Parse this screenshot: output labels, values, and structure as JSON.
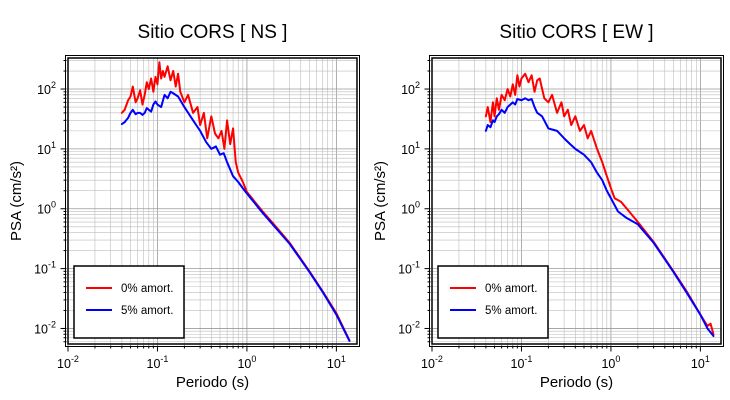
{
  "chart_data": [
    {
      "type": "line",
      "title": "Sitio CORS [ NS ]",
      "xlabel": "Periodo (s)",
      "ylabel": "PSA (cm/s²)",
      "xscale": "log",
      "yscale": "log",
      "xlim": [
        0.01,
        17
      ],
      "ylim": [
        0.0055,
        330
      ],
      "x_ticks": [
        0.01,
        0.1,
        1,
        10
      ],
      "x_tick_labels": [
        {
          "base": "10",
          "exp": "-2"
        },
        {
          "base": "10",
          "exp": "-1"
        },
        {
          "base": "10",
          "exp": "0"
        },
        {
          "base": "10",
          "exp": "1"
        }
      ],
      "y_ticks": [
        0.01,
        0.1,
        1,
        10,
        100
      ],
      "y_tick_labels": [
        {
          "base": "10",
          "exp": "-2"
        },
        {
          "base": "10",
          "exp": "-1"
        },
        {
          "base": "10",
          "exp": "0"
        },
        {
          "base": "10",
          "exp": "1"
        },
        {
          "base": "10",
          "exp": "2"
        }
      ],
      "grid": true,
      "legend_position": "bottom-left",
      "series": [
        {
          "name": "0% amort.",
          "color": "#ff0000",
          "x": [
            0.04,
            0.043,
            0.047,
            0.05,
            0.053,
            0.057,
            0.06,
            0.064,
            0.068,
            0.072,
            0.076,
            0.08,
            0.085,
            0.09,
            0.095,
            0.1,
            0.105,
            0.11,
            0.115,
            0.12,
            0.13,
            0.14,
            0.15,
            0.16,
            0.17,
            0.18,
            0.2,
            0.22,
            0.25,
            0.28,
            0.3,
            0.33,
            0.36,
            0.4,
            0.44,
            0.48,
            0.52,
            0.56,
            0.6,
            0.65,
            0.7,
            0.75,
            0.8,
            0.9,
            1.0,
            1.5,
            2,
            3,
            5,
            7,
            10,
            14
          ],
          "y": [
            40,
            45,
            65,
            75,
            110,
            60,
            70,
            95,
            55,
            80,
            130,
            100,
            150,
            90,
            160,
            120,
            280,
            150,
            200,
            160,
            240,
            140,
            200,
            110,
            180,
            90,
            60,
            80,
            40,
            50,
            25,
            40,
            15,
            35,
            18,
            15,
            20,
            10,
            30,
            12,
            22,
            6,
            4,
            2.8,
            1.9,
            0.9,
            0.55,
            0.27,
            0.09,
            0.042,
            0.018,
            0.0063
          ]
        },
        {
          "name": "5% amort.",
          "color": "#0000ff",
          "x": [
            0.04,
            0.043,
            0.047,
            0.05,
            0.053,
            0.057,
            0.06,
            0.064,
            0.068,
            0.072,
            0.076,
            0.08,
            0.085,
            0.09,
            0.095,
            0.1,
            0.11,
            0.12,
            0.13,
            0.14,
            0.15,
            0.17,
            0.2,
            0.25,
            0.3,
            0.35,
            0.4,
            0.45,
            0.5,
            0.55,
            0.6,
            0.7,
            0.8,
            0.9,
            1.0,
            1.5,
            2,
            3,
            5,
            7,
            10,
            14
          ],
          "y": [
            26,
            28,
            33,
            40,
            45,
            38,
            40,
            40,
            37,
            40,
            48,
            45,
            42,
            55,
            62,
            55,
            50,
            80,
            70,
            90,
            85,
            75,
            50,
            30,
            20,
            13,
            10,
            11,
            8,
            8.5,
            6,
            3.5,
            2.8,
            2.2,
            1.8,
            0.85,
            0.52,
            0.26,
            0.088,
            0.041,
            0.017,
            0.0062
          ]
        }
      ]
    },
    {
      "type": "line",
      "title": "Sitio CORS [ EW ]",
      "xlabel": "Periodo (s)",
      "ylabel": "PSA (cm/s²)",
      "xscale": "log",
      "yscale": "log",
      "xlim": [
        0.01,
        17
      ],
      "ylim": [
        0.0055,
        330
      ],
      "x_ticks": [
        0.01,
        0.1,
        1,
        10
      ],
      "x_tick_labels": [
        {
          "base": "10",
          "exp": "-2"
        },
        {
          "base": "10",
          "exp": "-1"
        },
        {
          "base": "10",
          "exp": "0"
        },
        {
          "base": "10",
          "exp": "1"
        }
      ],
      "y_ticks": [
        0.01,
        0.1,
        1,
        10,
        100
      ],
      "y_tick_labels": [
        {
          "base": "10",
          "exp": "-2"
        },
        {
          "base": "10",
          "exp": "-1"
        },
        {
          "base": "10",
          "exp": "0"
        },
        {
          "base": "10",
          "exp": "1"
        },
        {
          "base": "10",
          "exp": "2"
        }
      ],
      "grid": true,
      "legend_position": "bottom-left",
      "series": [
        {
          "name": "0% amort.",
          "color": "#ff0000",
          "x": [
            0.04,
            0.042,
            0.045,
            0.048,
            0.05,
            0.053,
            0.056,
            0.06,
            0.065,
            0.07,
            0.075,
            0.08,
            0.085,
            0.09,
            0.095,
            0.1,
            0.11,
            0.12,
            0.13,
            0.14,
            0.15,
            0.16,
            0.18,
            0.2,
            0.22,
            0.25,
            0.28,
            0.3,
            0.33,
            0.36,
            0.4,
            0.45,
            0.5,
            0.55,
            0.6,
            0.7,
            0.8,
            0.9,
            1.0,
            1.1,
            1.3,
            1.6,
            2,
            3,
            5,
            7,
            10,
            12,
            13,
            14
          ],
          "y": [
            35,
            50,
            28,
            60,
            35,
            70,
            45,
            80,
            65,
            100,
            75,
            120,
            80,
            170,
            110,
            150,
            180,
            130,
            170,
            90,
            140,
            150,
            70,
            60,
            80,
            40,
            60,
            35,
            45,
            25,
            35,
            20,
            25,
            15,
            20,
            10,
            6,
            3.5,
            2.2,
            1.5,
            1.3,
            0.9,
            0.6,
            0.28,
            0.09,
            0.042,
            0.017,
            0.011,
            0.012,
            0.008
          ]
        },
        {
          "name": "5% amort.",
          "color": "#0000ff",
          "x": [
            0.04,
            0.042,
            0.045,
            0.048,
            0.05,
            0.053,
            0.056,
            0.06,
            0.065,
            0.07,
            0.075,
            0.08,
            0.085,
            0.09,
            0.1,
            0.11,
            0.12,
            0.13,
            0.14,
            0.15,
            0.17,
            0.2,
            0.25,
            0.3,
            0.35,
            0.4,
            0.5,
            0.6,
            0.7,
            0.8,
            0.9,
            1.0,
            1.2,
            1.5,
            2,
            3,
            5,
            7,
            10,
            12,
            14
          ],
          "y": [
            20,
            25,
            23,
            30,
            28,
            35,
            38,
            45,
            40,
            50,
            55,
            60,
            55,
            68,
            65,
            70,
            65,
            68,
            50,
            40,
            35,
            22,
            20,
            15,
            12,
            10,
            8,
            6,
            4,
            3,
            2,
            1.5,
            0.9,
            0.7,
            0.55,
            0.27,
            0.088,
            0.04,
            0.017,
            0.01,
            0.0075
          ]
        }
      ]
    }
  ]
}
